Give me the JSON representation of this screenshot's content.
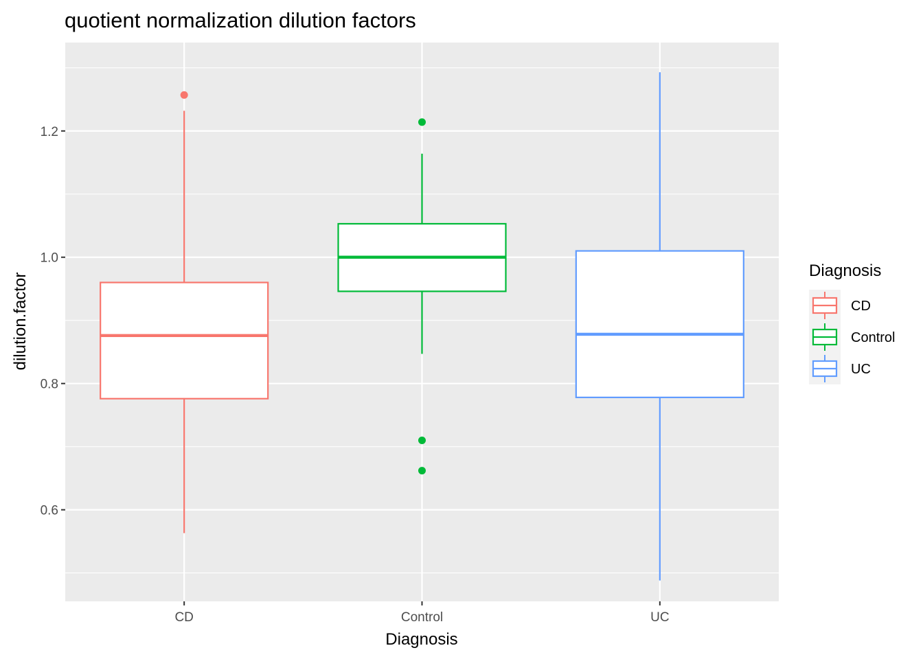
{
  "chart_data": {
    "type": "boxplot",
    "title": "quotient normalization dilution factors",
    "xlabel": "Diagnosis",
    "ylabel": "dilution.factor",
    "ylim": [
      0.455,
      1.34
    ],
    "y_ticks": [
      0.6,
      0.8,
      1.0,
      1.2
    ],
    "y_tick_labels": [
      "0.6",
      "0.8",
      "1.0",
      "1.2"
    ],
    "categories": [
      "CD",
      "Control",
      "UC"
    ],
    "colors": {
      "CD": "#F8766D",
      "Control": "#00BA38",
      "UC": "#619CFF"
    },
    "boxes": [
      {
        "name": "CD",
        "whisker_low": 0.563,
        "q1": 0.776,
        "median": 0.876,
        "q3": 0.96,
        "whisker_high": 1.232,
        "outliers": [
          1.257
        ]
      },
      {
        "name": "Control",
        "whisker_low": 0.847,
        "q1": 0.946,
        "median": 1.0,
        "q3": 1.053,
        "whisker_high": 1.164,
        "outliers": [
          1.214,
          0.71,
          0.662
        ]
      },
      {
        "name": "UC",
        "whisker_low": 0.488,
        "q1": 0.778,
        "median": 0.878,
        "q3": 1.01,
        "whisker_high": 1.293,
        "outliers": []
      }
    ],
    "legend": {
      "title": "Diagnosis",
      "entries": [
        "CD",
        "Control",
        "UC"
      ],
      "position": "right"
    },
    "grid": true
  }
}
